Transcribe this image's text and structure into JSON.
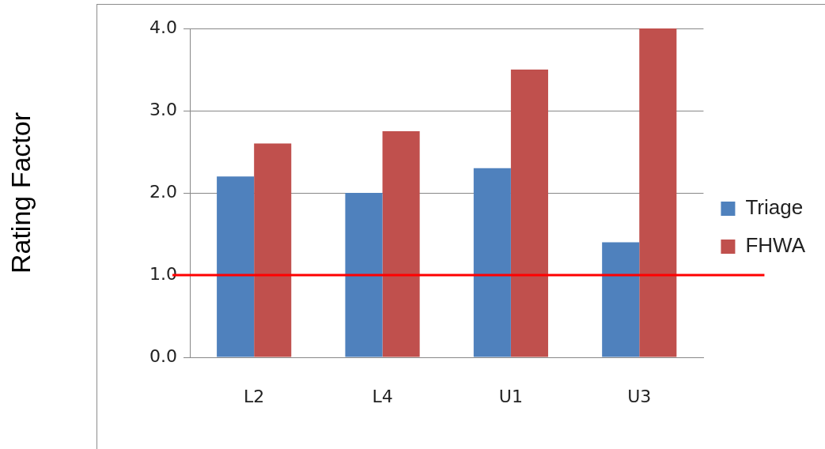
{
  "chart_data": {
    "type": "bar",
    "ylabel": "Rating Factor",
    "categories": [
      "L2",
      "L4",
      "U1",
      "U3"
    ],
    "series": [
      {
        "name": "Triage",
        "color": "#4f81bd",
        "values": [
          2.2,
          2.0,
          2.3,
          1.4
        ]
      },
      {
        "name": "FHWA",
        "color": "#c0504d",
        "values": [
          2.6,
          2.75,
          3.5,
          4.0
        ]
      }
    ],
    "ylim": [
      0,
      4
    ],
    "yticks": [
      {
        "value": 0,
        "label": "0.0"
      },
      {
        "value": 1,
        "label": "1.0"
      },
      {
        "value": 2,
        "label": "2.0"
      },
      {
        "value": 3,
        "label": "3.0"
      },
      {
        "value": 4,
        "label": "4.0"
      }
    ],
    "ref_lines": [
      {
        "axis": "y",
        "value": 1,
        "color": "#ff0000"
      }
    ],
    "grid": "y",
    "legend": "right"
  }
}
